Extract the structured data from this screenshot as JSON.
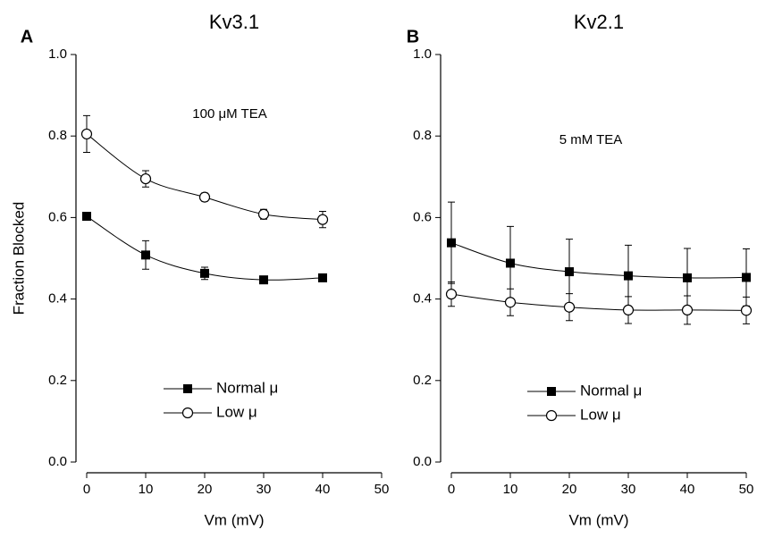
{
  "chart_data": [
    {
      "type": "line",
      "panel": "A",
      "title": "Kv3.1",
      "annotation": "100 μM TEA",
      "x_label": "Vm (mV)",
      "y_label": "Fraction Blocked",
      "x": [
        0,
        10,
        20,
        30,
        40
      ],
      "series": [
        {
          "name": "Normal μ",
          "color": "#000000",
          "marker": "square",
          "values": [
            0.603,
            0.508,
            0.463,
            0.447,
            0.452
          ],
          "error": [
            0.005,
            0.035,
            0.015,
            0.005,
            0.005
          ]
        },
        {
          "name": "Low μ",
          "color": "#000000",
          "marker": "circle",
          "values": [
            0.805,
            0.695,
            0.65,
            0.608,
            0.595
          ],
          "error": [
            0.045,
            0.02,
            0.01,
            0.012,
            0.02
          ]
        }
      ],
      "xlim": [
        0,
        50
      ],
      "xticks": [
        0,
        10,
        20,
        30,
        40,
        50
      ],
      "ylim": [
        0,
        1
      ],
      "yticks": [
        {
          "value": 0,
          "label": "0.0"
        },
        0.2,
        0.4,
        0.6,
        0.8,
        {
          "value": 1,
          "label": "1.0"
        }
      ],
      "legend": "lower center"
    },
    {
      "type": "line",
      "panel": "B",
      "title": "Kv2.1",
      "annotation": "5 mM TEA",
      "x_label": "Vm (mV)",
      "x": [
        0,
        10,
        20,
        30,
        40,
        50
      ],
      "series": [
        {
          "name": "Normal μ",
          "color": "#000000",
          "marker": "square",
          "values": [
            0.538,
            0.488,
            0.467,
            0.457,
            0.452,
            0.453
          ],
          "error": [
            0.1,
            0.09,
            0.08,
            0.075,
            0.072,
            0.07
          ]
        },
        {
          "name": "Low μ",
          "color": "#000000",
          "marker": "circle",
          "values": [
            0.412,
            0.392,
            0.38,
            0.373,
            0.373,
            0.372
          ],
          "error": [
            0.03,
            0.033,
            0.033,
            0.033,
            0.035,
            0.033
          ]
        }
      ],
      "xlim": [
        0,
        50
      ],
      "xticks": [
        0,
        10,
        20,
        30,
        40,
        50
      ],
      "ylim": [
        0,
        1
      ],
      "yticks": [
        {
          "value": 0,
          "label": "0.0"
        },
        0.2,
        0.4,
        0.6,
        0.8,
        {
          "value": 1,
          "label": "1.0"
        }
      ],
      "legend": "lower center"
    }
  ]
}
